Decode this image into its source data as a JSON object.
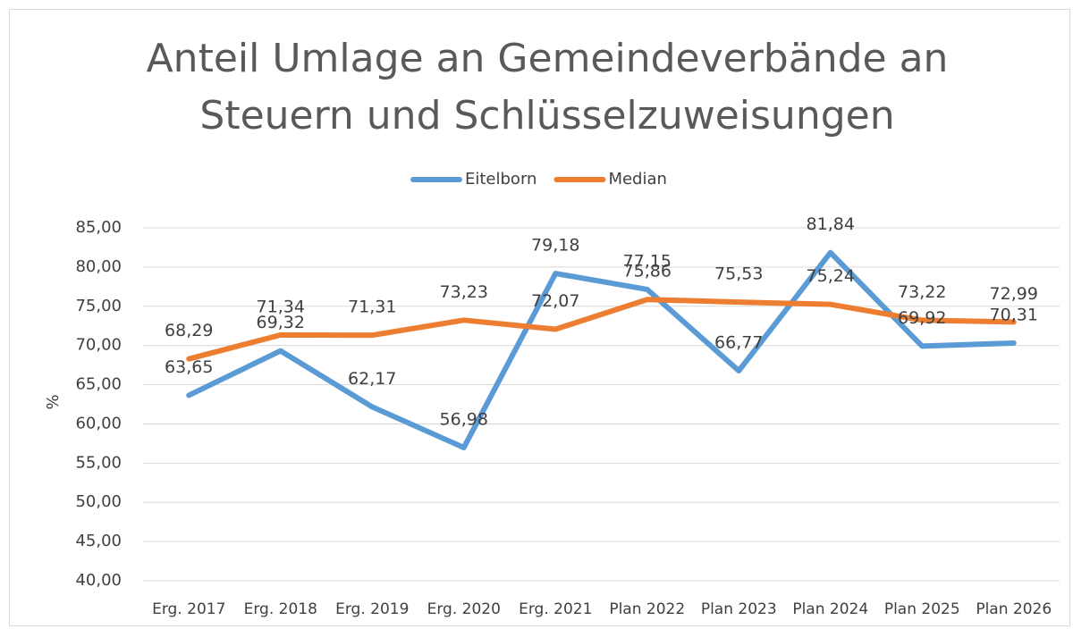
{
  "chart_data": {
    "type": "line",
    "title": [
      "Anteil Umlage an Gemeindeverbände an",
      "Steuern und Schlüsselzuweisungen"
    ],
    "y_label": "%",
    "categories": [
      "Erg. 2017",
      "Erg. 2018",
      "Erg. 2019",
      "Erg. 2020",
      "Erg. 2021",
      "Plan 2022",
      "Plan 2023",
      "Plan 2024",
      "Plan 2025",
      "Plan 2026"
    ],
    "series": [
      {
        "name": "Eitelborn",
        "color": "#5b9bd5",
        "values": [
          63.65,
          69.32,
          62.17,
          56.98,
          79.18,
          77.15,
          66.77,
          81.84,
          69.92,
          70.31
        ],
        "value_labels": [
          "63,65",
          "69,32",
          "62,17",
          "56,98",
          "79,18",
          "77,15",
          "66,77",
          "81,84",
          "69,92",
          "70,31"
        ]
      },
      {
        "name": "Median",
        "color": "#ed7d31",
        "values": [
          68.29,
          71.34,
          71.31,
          73.23,
          72.07,
          75.86,
          75.53,
          75.24,
          73.22,
          72.99
        ],
        "value_labels": [
          "68,29",
          "71,34",
          "71,31",
          "73,23",
          "72,07",
          "75,86",
          "75,53",
          "75,24",
          "73,22",
          "72,99"
        ]
      }
    ],
    "ylim": [
      40,
      85
    ],
    "yticks": [
      {
        "value": 40,
        "label": "40,00"
      },
      {
        "value": 45,
        "label": "45,00"
      },
      {
        "value": 50,
        "label": "50,00"
      },
      {
        "value": 55,
        "label": "55,00"
      },
      {
        "value": 60,
        "label": "60,00"
      },
      {
        "value": 65,
        "label": "65,00"
      },
      {
        "value": 70,
        "label": "70,00"
      },
      {
        "value": 75,
        "label": "75,00"
      },
      {
        "value": 80,
        "label": "80,00"
      },
      {
        "value": 85,
        "label": "85,00"
      }
    ],
    "grid": true,
    "legend": "top"
  }
}
